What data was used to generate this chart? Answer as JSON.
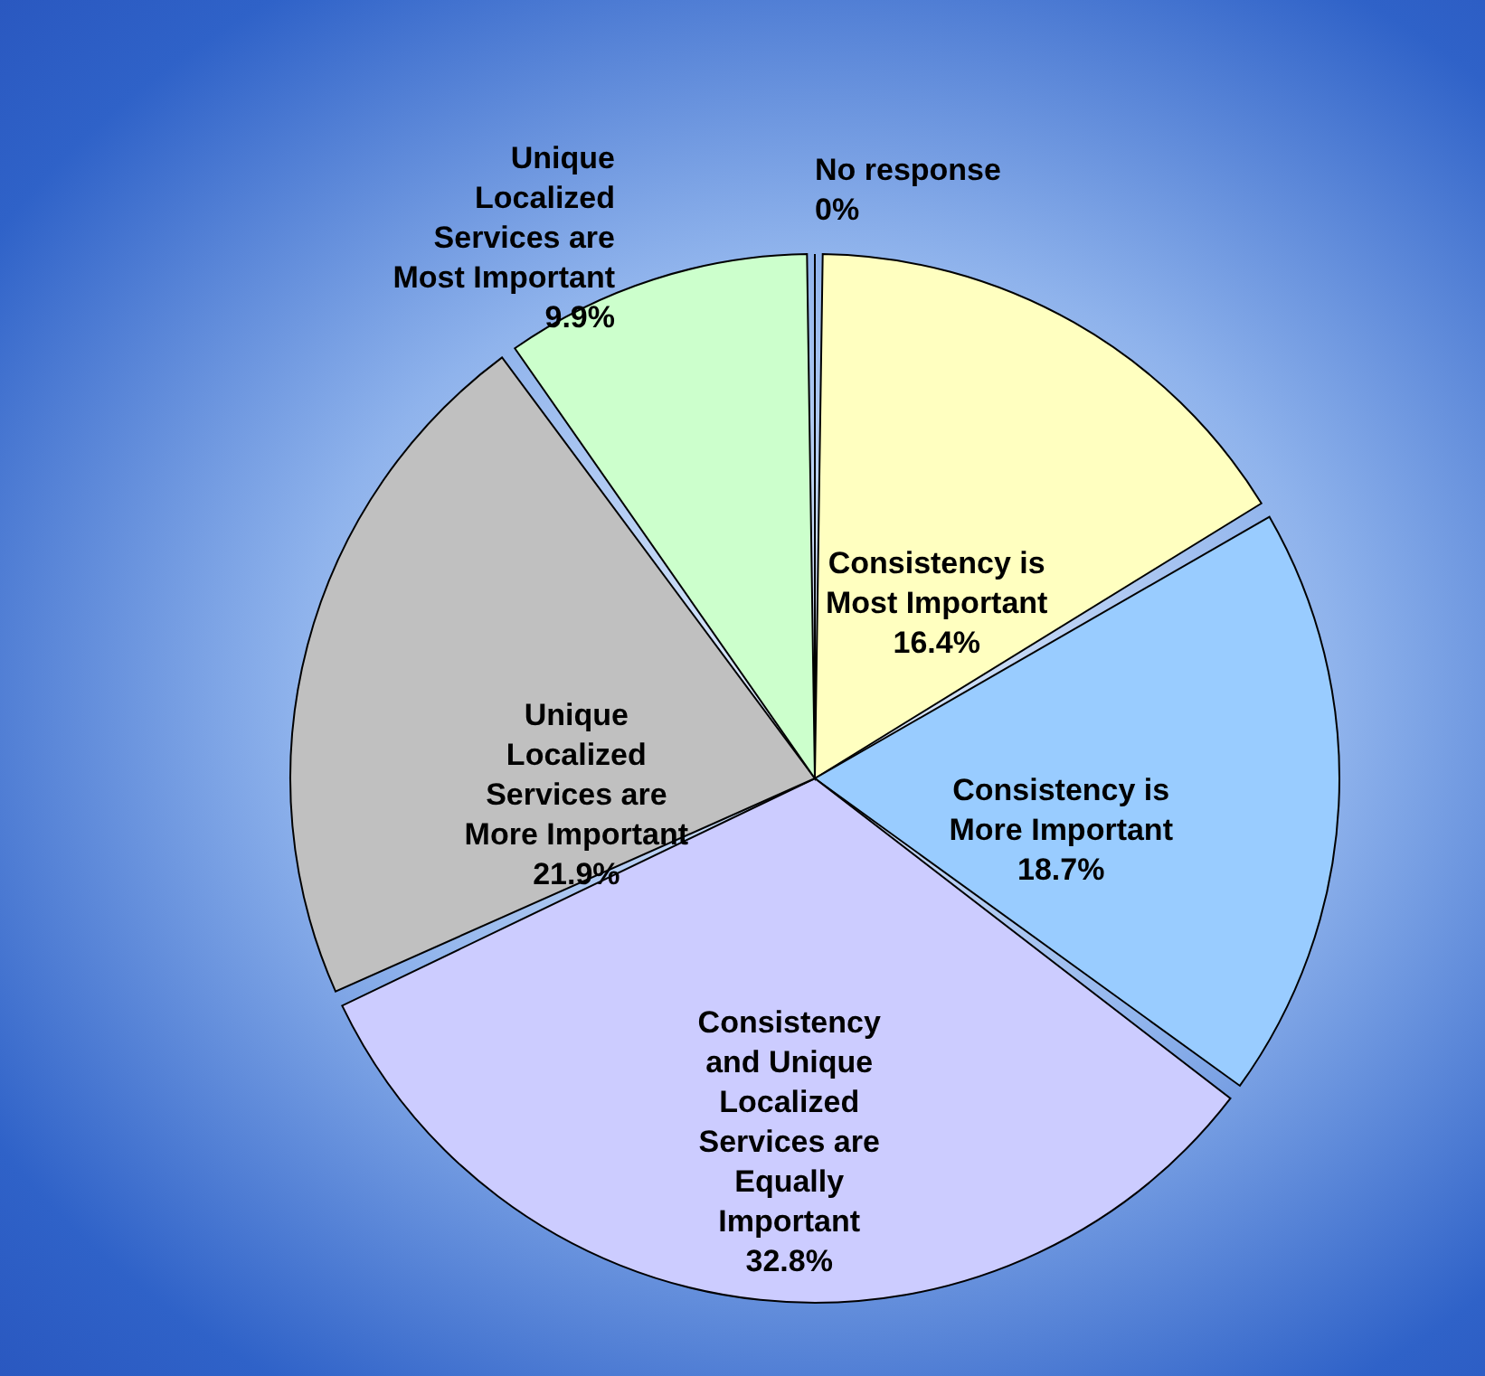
{
  "chart_data": {
    "type": "pie",
    "categories": [
      "No response",
      "Consistency is Most Important",
      "Consistency is More Important",
      "Consistency and Unique Localized Services are Equally Important",
      "Unique Localized Services are More Important",
      "Unique Localized Services are Most Important"
    ],
    "values": [
      0,
      16.4,
      18.7,
      32.8,
      21.9,
      9.9
    ],
    "colors": [
      "#2a5bc4",
      "#ffffc0",
      "#99ccff",
      "#ccccff",
      "#c0c0c0",
      "#ccffcc"
    ],
    "value_labels": [
      "0%",
      "16.4%",
      "18.7%",
      "32.8%",
      "21.9%",
      "9.9%"
    ]
  }
}
